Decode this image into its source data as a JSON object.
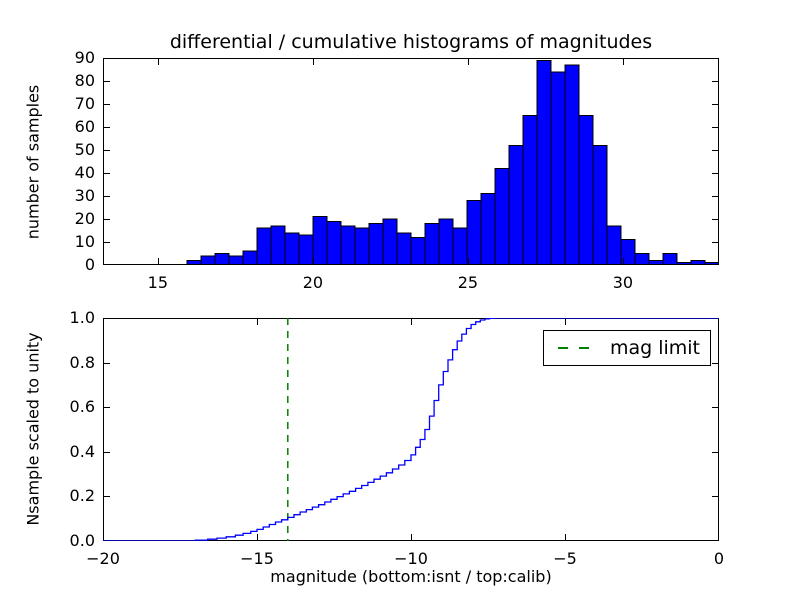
{
  "figure": {
    "background": "#ffffff",
    "axis_color": "#000000"
  },
  "chart_data": [
    {
      "type": "bar",
      "subplot": "top",
      "title": "differential / cumulative histograms of magnitudes",
      "ylabel": "number of samples",
      "xlabel": "",
      "xlim": [
        13.23,
        33.1
      ],
      "ylim": [
        0,
        90
      ],
      "grid": false,
      "bar_color": "#0000ff",
      "bar_edge_color": "#000000",
      "bins": {
        "start": 15.94,
        "width": 0.4516
      },
      "values": [
        2,
        4,
        5,
        4,
        6,
        16,
        17,
        14,
        13,
        21,
        19,
        17,
        16,
        18,
        20,
        14,
        12,
        18,
        20,
        16,
        28,
        31,
        42,
        52,
        65,
        89,
        84,
        87,
        65,
        52,
        17,
        11,
        5,
        2,
        5,
        1,
        2,
        1
      ],
      "xticks": {
        "values": [
          15,
          20,
          25,
          30
        ],
        "labels": [
          "15",
          "20",
          "25",
          "30"
        ]
      },
      "yticks": {
        "values": [
          0,
          10,
          20,
          30,
          40,
          50,
          60,
          70,
          80,
          90
        ],
        "labels": [
          "0",
          "10",
          "20",
          "30",
          "40",
          "50",
          "60",
          "70",
          "80",
          "90"
        ]
      }
    },
    {
      "type": "line",
      "subplot": "bottom",
      "style": "step",
      "ylabel": "Nsample scaled to unity",
      "xlabel": "magnitude (bottom:isnt / top:calib)",
      "xlim": [
        -20,
        0
      ],
      "ylim": [
        0,
        1
      ],
      "grid": false,
      "line_color": "#0000ff",
      "x": [
        -20,
        -17.0,
        -16.6,
        -16.3,
        -16.0,
        -15.7,
        -15.45,
        -15.2,
        -15.0,
        -14.8,
        -14.6,
        -14.4,
        -14.2,
        -14.0,
        -13.8,
        -13.6,
        -13.4,
        -13.2,
        -13.0,
        -12.8,
        -12.6,
        -12.4,
        -12.2,
        -12.0,
        -11.8,
        -11.6,
        -11.4,
        -11.2,
        -11.0,
        -10.8,
        -10.6,
        -10.4,
        -10.2,
        -10.0,
        -9.85,
        -9.7,
        -9.55,
        -9.4,
        -9.25,
        -9.1,
        -8.95,
        -8.8,
        -8.65,
        -8.5,
        -8.35,
        -8.2,
        -8.05,
        -7.9,
        -7.75,
        -7.6,
        -7.45,
        -7.3,
        0
      ],
      "y": [
        0,
        0.004,
        0.008,
        0.013,
        0.019,
        0.026,
        0.034,
        0.043,
        0.052,
        0.063,
        0.074,
        0.085,
        0.095,
        0.106,
        0.118,
        0.13,
        0.141,
        0.152,
        0.163,
        0.175,
        0.187,
        0.199,
        0.211,
        0.223,
        0.236,
        0.249,
        0.263,
        0.277,
        0.291,
        0.306,
        0.323,
        0.341,
        0.361,
        0.386,
        0.42,
        0.455,
        0.5,
        0.56,
        0.63,
        0.7,
        0.76,
        0.812,
        0.858,
        0.897,
        0.928,
        0.953,
        0.971,
        0.983,
        0.991,
        0.996,
        0.998,
        1.0,
        1.0
      ],
      "vline": {
        "x": -14,
        "color": "#008000",
        "style": "dashed"
      },
      "legend": {
        "position": "upper right",
        "entries": [
          {
            "label": "mag limit",
            "color": "#008000",
            "style": "dashed"
          }
        ]
      },
      "xticks": {
        "values": [
          -20,
          -15,
          -10,
          -5,
          0
        ],
        "labels": [
          "−20",
          "−15",
          "−10",
          "−5",
          "0"
        ]
      },
      "yticks": {
        "values": [
          0,
          0.2,
          0.4,
          0.6,
          0.8,
          1.0
        ],
        "labels": [
          "0.0",
          "0.2",
          "0.4",
          "0.6",
          "0.8",
          "1.0"
        ]
      }
    }
  ]
}
